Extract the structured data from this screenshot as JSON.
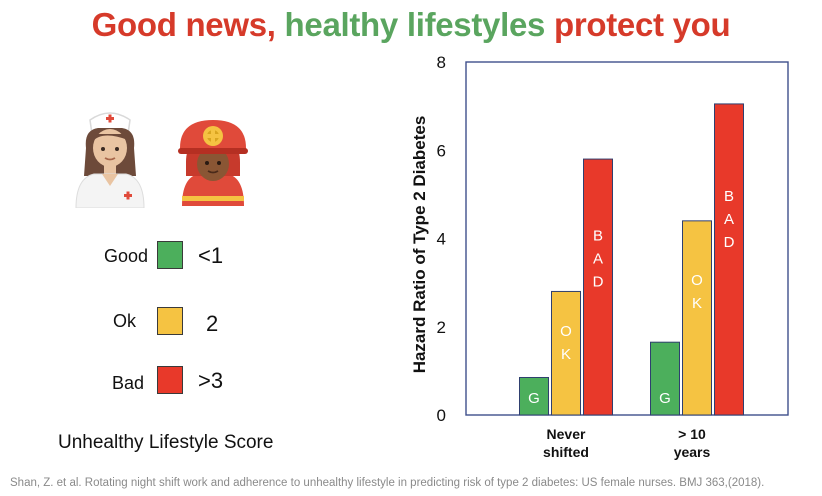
{
  "title": {
    "part1": "Good news, ",
    "part2": "healthy lifestyles",
    "part3": " protect you"
  },
  "icons": [
    "nurse-icon",
    "firefighter-icon"
  ],
  "legend": {
    "title": "Unhealthy Lifestyle Score",
    "items": [
      {
        "label": "Good",
        "value": "<1",
        "color": "#4caf5c"
      },
      {
        "label": "Ok",
        "value": "2",
        "color": "#f5c342"
      },
      {
        "label": "Bad",
        "value": ">3",
        "color": "#e8392a"
      }
    ]
  },
  "chart_data": {
    "type": "bar",
    "title": "",
    "xlabel": "",
    "ylabel": "Hazard Ratio of Type 2 Diabetes",
    "ylim": [
      0,
      8
    ],
    "yticks": [
      0,
      2,
      4,
      6,
      8
    ],
    "categories": [
      [
        "Never",
        "shifted"
      ],
      [
        "> 10",
        "years"
      ]
    ],
    "series": [
      {
        "name": "Good",
        "bar_label": "G",
        "color": "#4caf5c",
        "values": [
          0.85,
          1.65
        ]
      },
      {
        "name": "Ok",
        "bar_label": "O K",
        "color": "#f5c342",
        "values": [
          2.8,
          4.4
        ]
      },
      {
        "name": "Bad",
        "bar_label": "B A D",
        "color": "#e8392a",
        "values": [
          5.8,
          7.05
        ]
      }
    ]
  },
  "citation": "Shan, Z. et al. Rotating night shift work and adherence to unhealthy lifestyle in predicting risk of type 2 diabetes: US female nurses. BMJ 363,(2018)."
}
